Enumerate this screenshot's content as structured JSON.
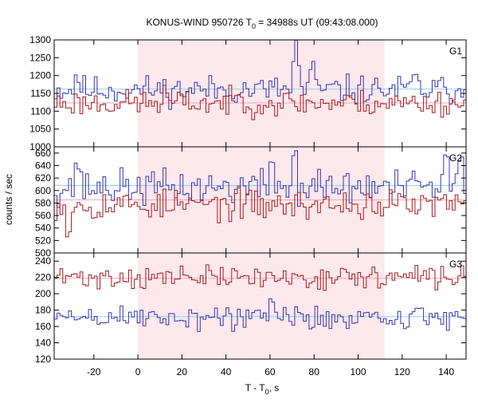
{
  "chart_data": {
    "type": "line",
    "title_prefix": "KONUS-WIND 950726 T",
    "title_sub": "0",
    "title_suffix": " = 34988s UT (09:43:08.000)",
    "xlabel_prefix": "T - T",
    "xlabel_sub": "0",
    "xlabel_suffix": ", s",
    "ylabel": "counts / sec",
    "xlim": [
      -38,
      149
    ],
    "x_ticks": [
      -20,
      0,
      20,
      40,
      60,
      80,
      100,
      120,
      140
    ],
    "shaded_interval": [
      0,
      112
    ],
    "bin_width": 1.3,
    "colors": {
      "shade": "#fde8ec",
      "blue": "#3535b5",
      "red": "#aa1a1a",
      "blue_bg": "#8fd3ee",
      "red_bg": "#f0a8bc"
    },
    "panels": [
      {
        "label": "G1",
        "ylim": [
          1000,
          1300
        ],
        "y_ticks": [
          1000,
          1050,
          1100,
          1150,
          1200,
          1250,
          1300
        ],
        "series": [
          {
            "color": "blue",
            "mean": 1160,
            "sd": 20,
            "background": 1162,
            "seed": 11,
            "peaks": [
              [
                70,
                75
              ],
              [
                72,
                60
              ],
              [
                78,
                55
              ],
              [
                -28,
                40
              ],
              [
                125,
                35
              ]
            ]
          },
          {
            "color": "red",
            "mean": 1123,
            "sd": 18,
            "background": 1123,
            "seed": 23,
            "peaks": [
              [
                12,
                25
              ],
              [
                45,
                20
              ]
            ]
          }
        ]
      },
      {
        "label": "G2",
        "ylim": [
          500,
          670
        ],
        "y_ticks": [
          500,
          520,
          540,
          560,
          580,
          600,
          620,
          640,
          660
        ],
        "series": [
          {
            "color": "blue",
            "mean": 605,
            "sd": 14,
            "background": 608,
            "seed": 37,
            "peaks": [
              [
                -28,
                40
              ],
              [
                60,
                45
              ],
              [
                70,
                45
              ],
              [
                140,
                45
              ],
              [
                146,
                40
              ]
            ]
          },
          {
            "color": "red",
            "mean": 577,
            "sd": 12,
            "background": 585,
            "seed": 53,
            "peaks": [
              [
                -32,
                -35
              ]
            ]
          }
        ]
      },
      {
        "label": "G3",
        "ylim": [
          120,
          250
        ],
        "y_ticks": [
          120,
          140,
          160,
          180,
          200,
          220,
          240
        ],
        "series": [
          {
            "color": "red",
            "mean": 220,
            "sd": 7,
            "background": 219,
            "seed": 71,
            "peaks": []
          },
          {
            "color": "blue",
            "mean": 171,
            "sd": 8,
            "background": 172,
            "seed": 89,
            "peaks": [
              [
                60,
                18
              ]
            ]
          }
        ]
      }
    ]
  }
}
